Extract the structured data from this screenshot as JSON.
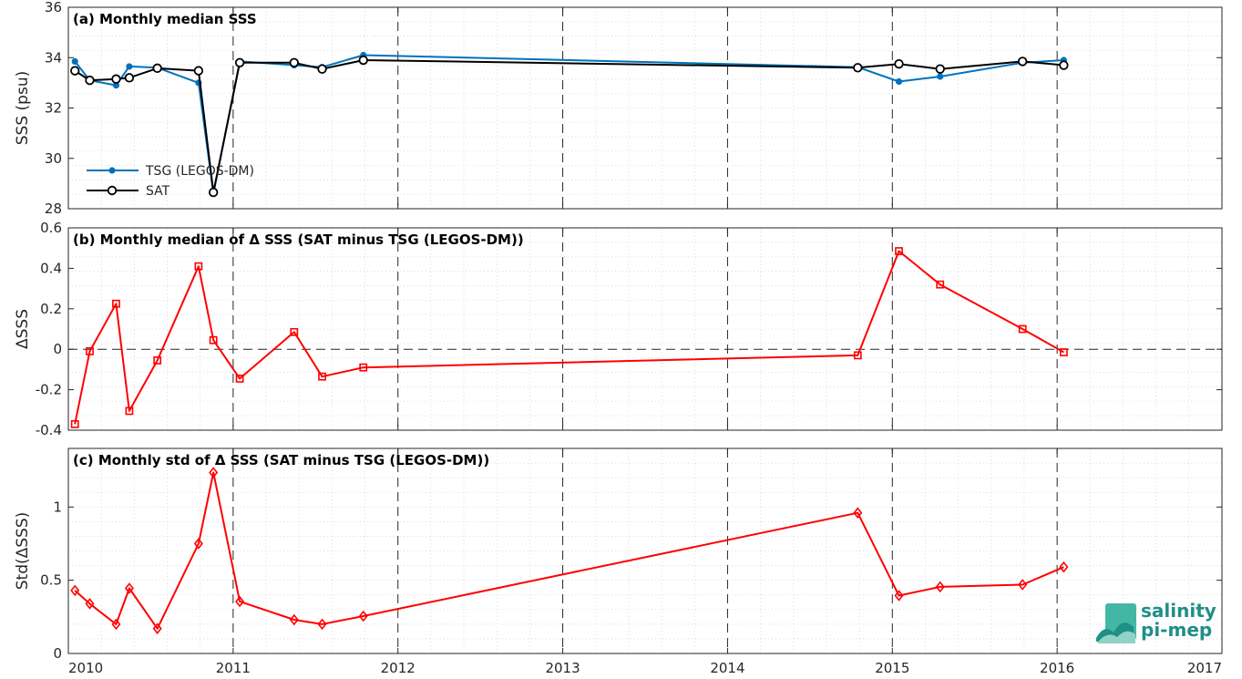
{
  "chart_data": [
    {
      "type": "line",
      "title": "(a) Monthly median SSS",
      "ylabel": "SSS (psu)",
      "xlim": [
        2010,
        2017
      ],
      "ylim": [
        28,
        36
      ],
      "xticks": [
        "2010",
        "2011",
        "2012",
        "2013",
        "2014",
        "2015",
        "2016",
        "2017"
      ],
      "yticks": [
        "28",
        "30",
        "32",
        "34",
        "36"
      ],
      "grid": true,
      "legend": "bottom-left",
      "series": [
        {
          "name": "TSG (LEGOS-DM)",
          "color": "#0072BD",
          "marker": "filled-dot",
          "x": [
            2010.04,
            2010.13,
            2010.29,
            2010.37,
            2010.54,
            2010.79,
            2010.88,
            2011.04,
            2011.37,
            2011.54,
            2011.79,
            2014.79,
            2015.04,
            2015.29,
            2015.79,
            2016.04
          ],
          "y": [
            33.85,
            33.1,
            32.9,
            33.65,
            33.6,
            33.0,
            28.6,
            33.85,
            33.7,
            33.62,
            34.1,
            33.62,
            33.05,
            33.25,
            33.8,
            33.9
          ]
        },
        {
          "name": "SAT",
          "color": "#000000",
          "marker": "open-circle",
          "x": [
            2010.04,
            2010.13,
            2010.29,
            2010.37,
            2010.54,
            2010.79,
            2010.88,
            2011.04,
            2011.37,
            2011.54,
            2011.79,
            2014.79,
            2015.04,
            2015.29,
            2015.79,
            2016.04
          ],
          "y": [
            33.48,
            33.1,
            33.15,
            33.2,
            33.58,
            33.48,
            28.65,
            33.8,
            33.8,
            33.55,
            33.9,
            33.6,
            33.75,
            33.55,
            33.85,
            33.7
          ]
        }
      ]
    },
    {
      "type": "line",
      "title": "(b) Monthly median of Δ SSS (SAT minus TSG (LEGOS-DM))",
      "ylabel": "ΔSSS",
      "xlim": [
        2010,
        2017
      ],
      "ylim": [
        -0.4,
        0.6
      ],
      "xticks": [
        "2010",
        "2011",
        "2012",
        "2013",
        "2014",
        "2015",
        "2016",
        "2017"
      ],
      "yticks": [
        "-0.4",
        "-0.2",
        "0",
        "0.2",
        "0.4",
        "0.6"
      ],
      "grid": true,
      "zero_line": true,
      "series": [
        {
          "color": "#FF0000",
          "marker": "open-square",
          "x": [
            2010.04,
            2010.13,
            2010.29,
            2010.37,
            2010.54,
            2010.79,
            2010.88,
            2011.04,
            2011.37,
            2011.54,
            2011.79,
            2014.79,
            2015.04,
            2015.29,
            2015.79,
            2016.04
          ],
          "y": [
            -0.37,
            -0.01,
            0.225,
            -0.305,
            -0.055,
            0.41,
            0.045,
            -0.145,
            0.085,
            -0.135,
            -0.09,
            -0.03,
            0.485,
            0.32,
            0.1,
            -0.015
          ]
        }
      ]
    },
    {
      "type": "line",
      "title": "(c) Monthly std of Δ SSS (SAT minus TSG (LEGOS-DM))",
      "ylabel": "Std(ΔSSS)",
      "xlim": [
        2010,
        2017
      ],
      "ylim": [
        0,
        1.4
      ],
      "xticks": [
        "2010",
        "2011",
        "2012",
        "2013",
        "2014",
        "2015",
        "2016",
        "2017"
      ],
      "yticks": [
        "0",
        "0.5",
        "1"
      ],
      "grid": true,
      "series": [
        {
          "color": "#FF0000",
          "marker": "open-diamond",
          "x": [
            2010.04,
            2010.13,
            2010.29,
            2010.37,
            2010.54,
            2010.79,
            2010.88,
            2011.04,
            2011.37,
            2011.54,
            2011.79,
            2014.79,
            2015.04,
            2015.29,
            2015.79,
            2016.04
          ],
          "y": [
            0.43,
            0.34,
            0.2,
            0.445,
            0.17,
            0.75,
            1.235,
            0.355,
            0.23,
            0.2,
            0.255,
            0.96,
            0.395,
            0.455,
            0.47,
            0.59
          ]
        }
      ]
    }
  ],
  "logo": {
    "line1": "salinity",
    "line2": "pi-mep"
  }
}
